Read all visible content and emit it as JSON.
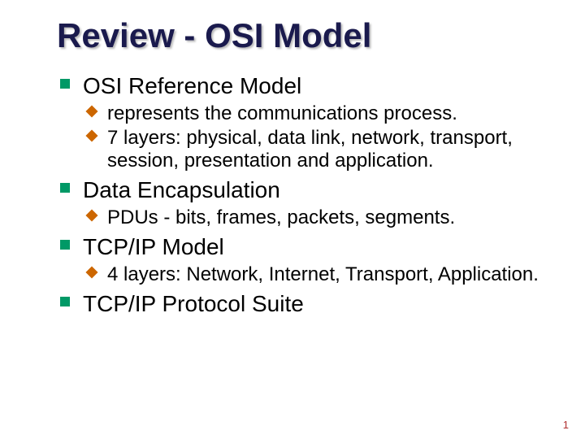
{
  "title": {
    "text": "Review - OSI Model",
    "fontsize": 42,
    "color": "#1a1a4d",
    "shadow_color": "rgba(120,120,120,0.5)"
  },
  "bullets": [
    {
      "text": "OSI Reference Model",
      "fontsize": 28,
      "bullet_color": "#009966",
      "sub": [
        {
          "text": "represents the communications process.",
          "fontsize": 24,
          "bullet_color": "#cc6600"
        },
        {
          "text": "7 layers: physical, data link, network, transport, session, presentation and application.",
          "fontsize": 24,
          "bullet_color": "#cc6600"
        }
      ]
    },
    {
      "text": "Data Encapsulation",
      "fontsize": 28,
      "bullet_color": "#009966",
      "sub": [
        {
          "text": "PDUs - bits, frames, packets, segments.",
          "fontsize": 24,
          "bullet_color": "#cc6600"
        }
      ]
    },
    {
      "text": "TCP/IP Model",
      "fontsize": 28,
      "bullet_color": "#009966",
      "sub": [
        {
          "text": "4 layers: Network, Internet, Transport, Application.",
          "fontsize": 24,
          "bullet_color": "#cc6600"
        }
      ]
    },
    {
      "text": "TCP/IP Protocol Suite",
      "fontsize": 28,
      "bullet_color": "#009966",
      "sub": []
    }
  ],
  "page_number": {
    "text": "1",
    "fontsize": 13,
    "color": "#b03030"
  },
  "background_color": "#ffffff"
}
